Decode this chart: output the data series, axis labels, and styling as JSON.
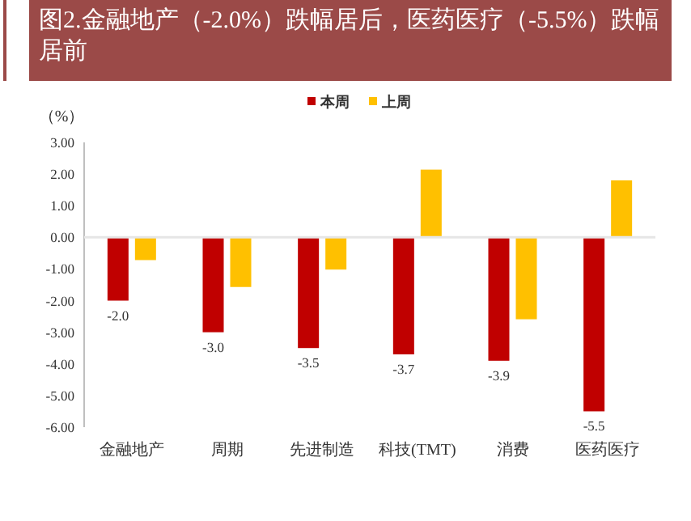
{
  "chart_data": {
    "type": "bar",
    "title": "图2.金融地产（-2.0%）跌幅居后，医药医疗（-5.5%）跌幅居前",
    "ylabel": "（%）",
    "categories": [
      "金融地产",
      "周期",
      "先进制造",
      "科技(TMT)",
      "消费",
      "医药医疗"
    ],
    "series": [
      {
        "name": "本周",
        "color": "#c00000",
        "values": [
          -2.0,
          -3.0,
          -3.5,
          -3.7,
          -3.9,
          -5.5
        ],
        "value_labels": [
          "-2.0",
          "-3.0",
          "-3.5",
          "-3.7",
          "-3.9",
          "-5.5"
        ]
      },
      {
        "name": "上周",
        "color": "#ffc000",
        "values": [
          -0.72,
          -1.57,
          -1.02,
          2.14,
          -2.59,
          1.8
        ]
      }
    ],
    "ylim": [
      -6,
      3
    ],
    "yticks": [
      {
        "value": 3,
        "label": "3.00"
      },
      {
        "value": 2,
        "label": "2.00"
      },
      {
        "value": 1,
        "label": "1.00"
      },
      {
        "value": 0,
        "label": "0.00"
      },
      {
        "value": -1,
        "label": "-1.00"
      },
      {
        "value": -2,
        "label": "-2.00"
      },
      {
        "value": -3,
        "label": "-3.00"
      },
      {
        "value": -4,
        "label": "-4.00"
      },
      {
        "value": -5,
        "label": "-5.00"
      },
      {
        "value": -6,
        "label": "-6.00"
      }
    ],
    "ref_lines": [
      {
        "axis": "y",
        "value": 0,
        "color": "#e6e6e6"
      }
    ],
    "legend": "top"
  }
}
